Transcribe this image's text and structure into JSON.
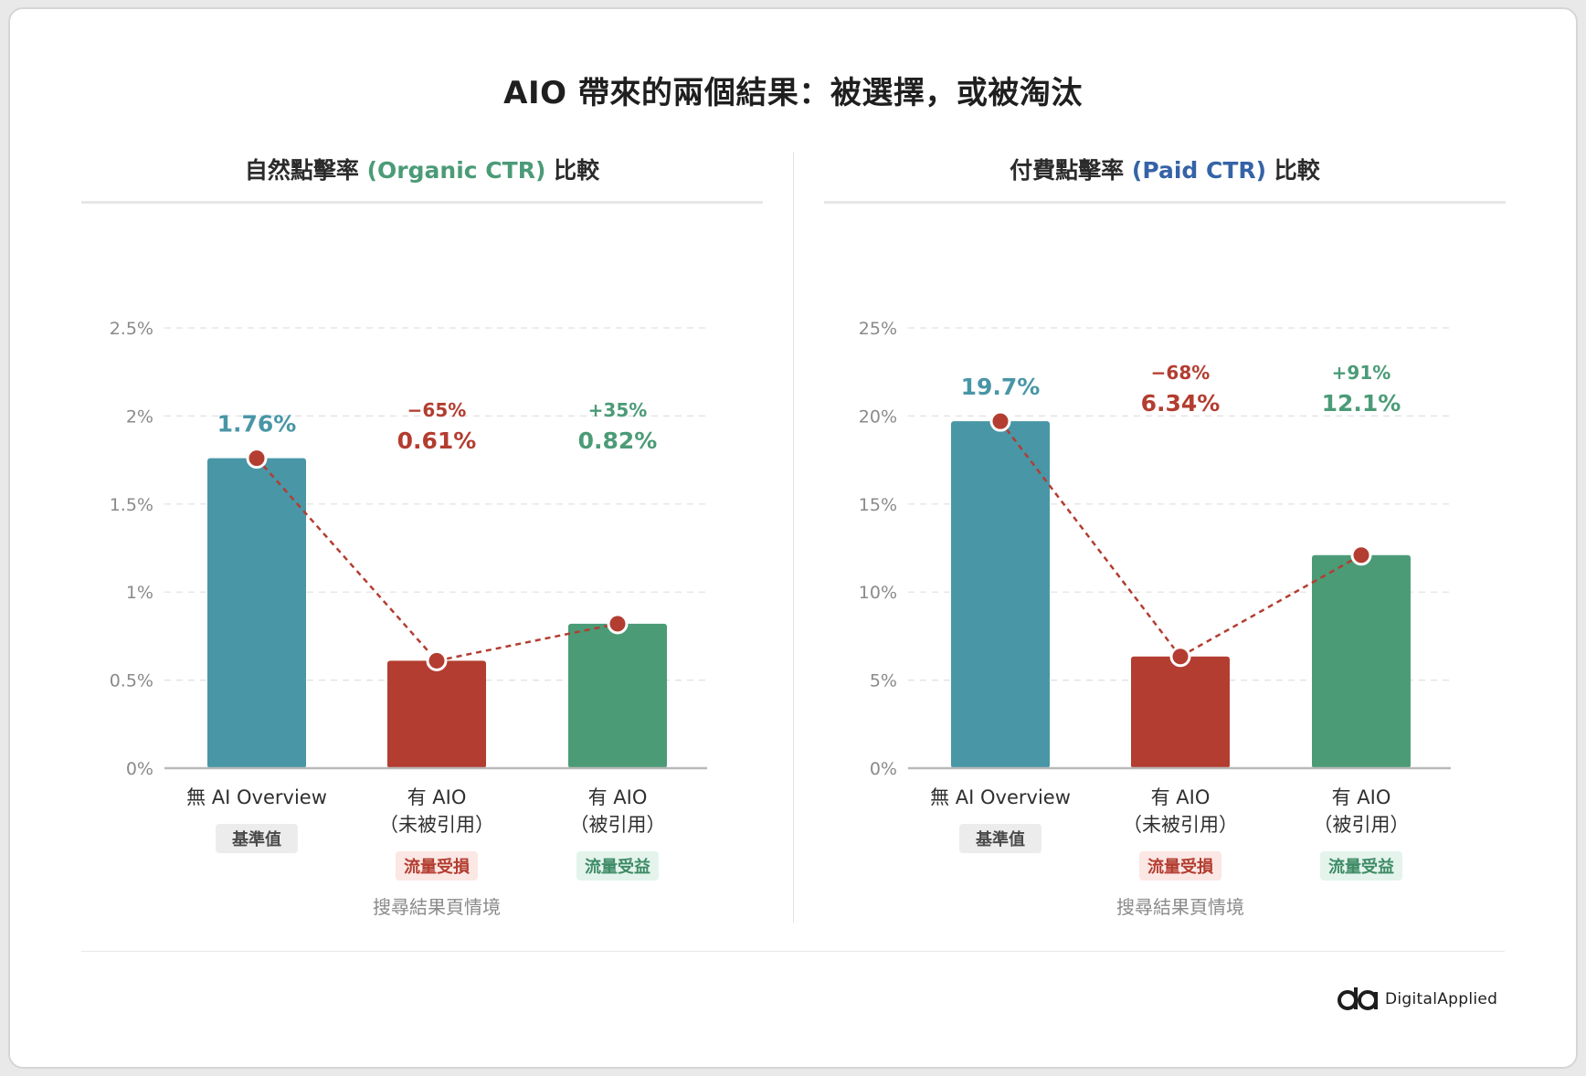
{
  "title": "AIO 帶來的兩個結果：被選擇，或被淘汰",
  "brand": {
    "name": "DigitalApplied"
  },
  "colors": {
    "baseline": "#4896a6",
    "loss": "#b33d30",
    "gain": "#4b9b77",
    "organic": "#4b9b77",
    "paid": "#3563a6"
  },
  "panels": [
    {
      "title_prefix": "自然點擊率 ",
      "title_highlight": "(Organic CTR)",
      "title_suffix": " 比較",
      "xlabel": "搜尋結果頁情境"
    },
    {
      "title_prefix": "付費點擊率 ",
      "title_highlight": "(Paid CTR)",
      "title_suffix": " 比較",
      "xlabel": "搜尋結果頁情境"
    }
  ],
  "chart_data": [
    {
      "type": "bar",
      "title": "自然點擊率 (Organic CTR) 比較",
      "xlabel": "搜尋結果頁情境",
      "ylim": [
        0,
        2.5
      ],
      "yticks": [
        "0%",
        "0.5%",
        "1%",
        "1.5%",
        "2%",
        "2.5%"
      ],
      "ytick_values": [
        0,
        0.5,
        1,
        1.5,
        2,
        2.5
      ],
      "grid": true,
      "categories": [
        {
          "line1": "無 AI Overview",
          "line2": "",
          "badge": "基準值",
          "kind": "baseline"
        },
        {
          "line1": "有 AIO",
          "line2": "（未被引用）",
          "badge": "流量受損",
          "kind": "loss"
        },
        {
          "line1": "有 AIO",
          "line2": "（被引用）",
          "badge": "流量受益",
          "kind": "gain"
        }
      ],
      "values": [
        1.76,
        0.61,
        0.82
      ],
      "value_labels": [
        "1.76%",
        "0.61%",
        "0.82%"
      ],
      "change_labels": [
        "",
        "−65%",
        "+35%"
      ]
    },
    {
      "type": "bar",
      "title": "付費點擊率 (Paid CTR) 比較",
      "xlabel": "搜尋結果頁情境",
      "ylim": [
        0,
        25
      ],
      "yticks": [
        "0%",
        "5%",
        "10%",
        "15%",
        "20%",
        "25%"
      ],
      "ytick_values": [
        0,
        5,
        10,
        15,
        20,
        25
      ],
      "grid": true,
      "categories": [
        {
          "line1": "無 AI Overview",
          "line2": "",
          "badge": "基準值",
          "kind": "baseline"
        },
        {
          "line1": "有 AIO",
          "line2": "（未被引用）",
          "badge": "流量受損",
          "kind": "loss"
        },
        {
          "line1": "有 AIO",
          "line2": "（被引用）",
          "badge": "流量受益",
          "kind": "gain"
        }
      ],
      "values": [
        19.7,
        6.34,
        12.1
      ],
      "value_labels": [
        "19.7%",
        "6.34%",
        "12.1%"
      ],
      "change_labels": [
        "",
        "−68%",
        "+91%"
      ]
    }
  ]
}
